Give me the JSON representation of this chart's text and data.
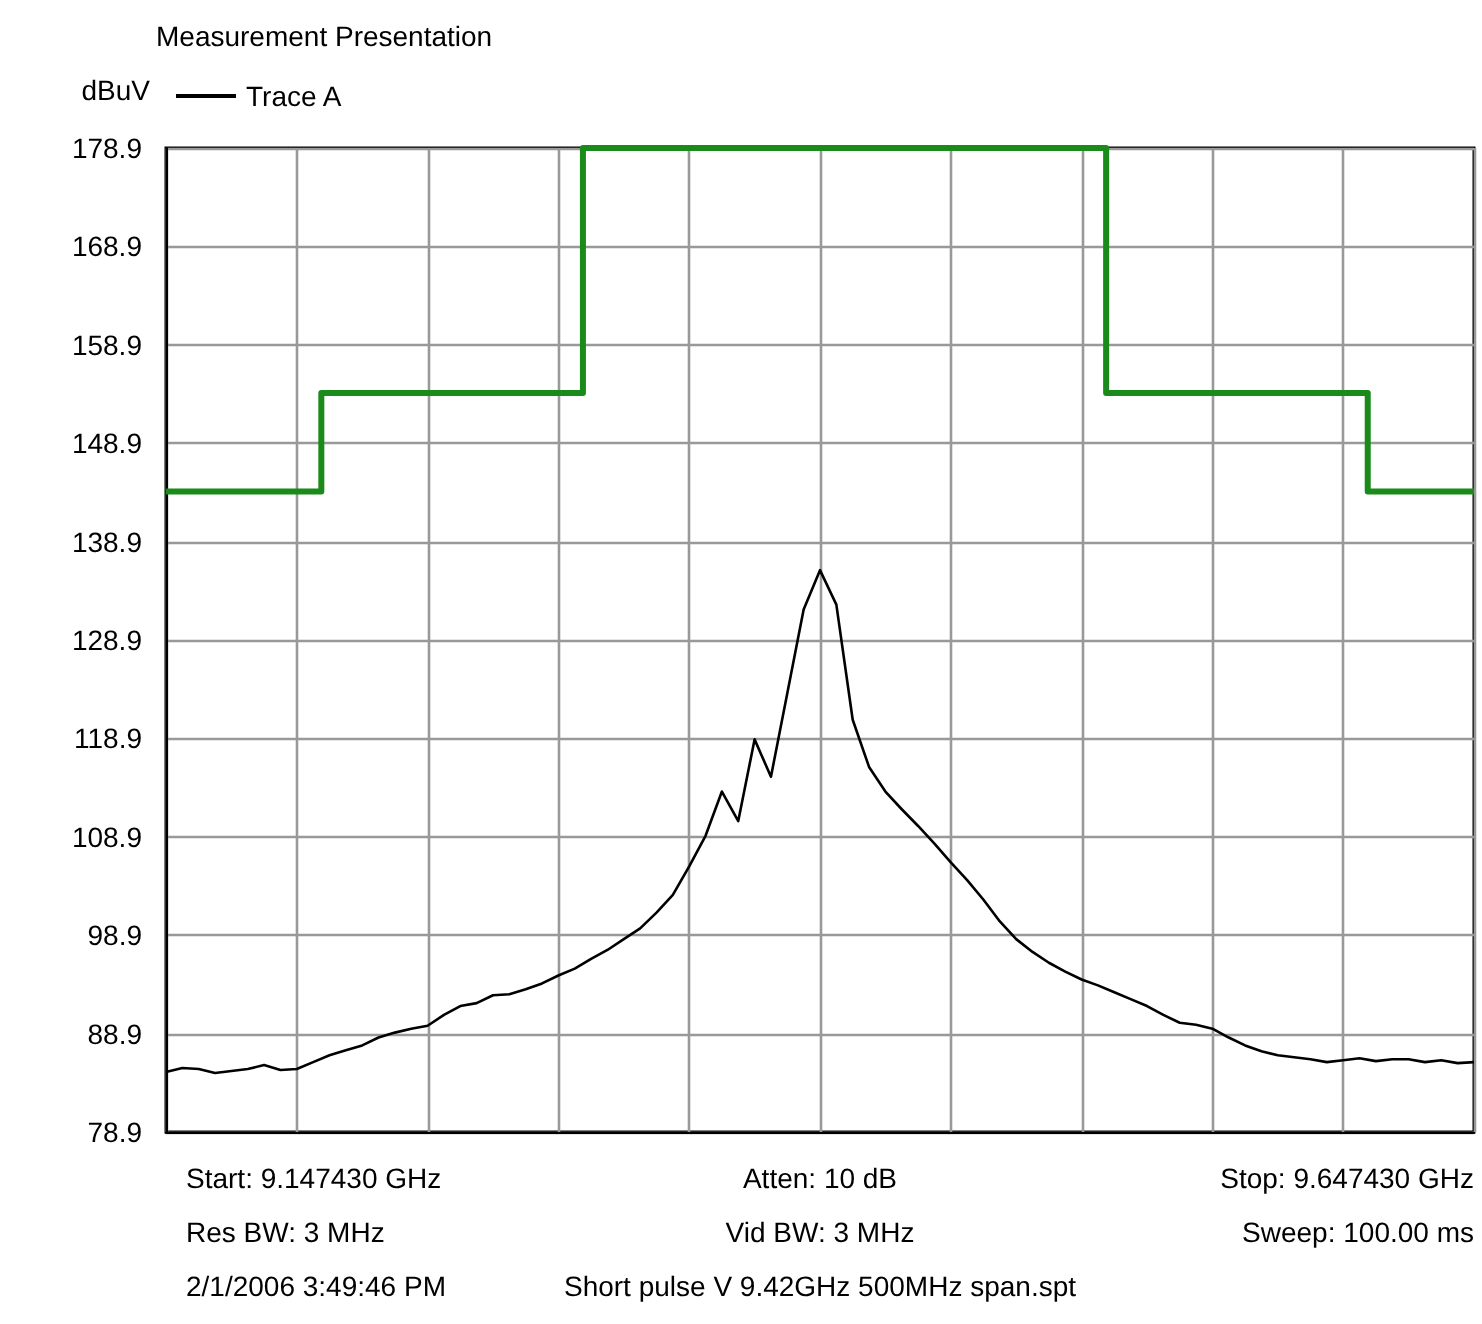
{
  "chart_data": {
    "type": "line",
    "title": "Measurement Presentation",
    "ylabel": "dBuV",
    "categories": [
      null,
      null,
      null,
      null,
      null,
      null,
      null,
      null,
      null,
      null,
      null,
      null,
      null,
      null,
      null,
      null,
      null,
      null,
      null,
      null,
      null,
      null,
      null,
      null,
      null,
      null,
      null,
      null,
      null,
      null,
      null,
      null,
      null,
      null,
      null,
      null,
      null,
      null,
      null,
      null,
      null,
      null,
      null,
      null,
      null,
      null,
      null,
      null,
      null,
      null,
      null,
      null,
      null,
      null,
      null,
      null,
      null,
      null,
      null,
      null,
      null,
      null,
      null,
      null,
      null,
      null,
      null,
      null,
      null,
      null,
      null,
      null,
      null,
      null,
      null,
      null,
      null,
      null,
      null,
      null,
      null
    ],
    "ylim": [
      78.9,
      178.9
    ],
    "yticks": [
      78.9,
      88.9,
      98.9,
      108.9,
      118.9,
      128.9,
      138.9,
      148.9,
      158.9,
      168.9,
      178.9
    ],
    "tick_labels": "y",
    "grid": true,
    "legend": "top left",
    "marker": "none",
    "series": [
      {
        "type": "step",
        "color": "#1a8a1a",
        "values": [
          144,
          144,
          144,
          144,
          144,
          144,
          144,
          144,
          144,
          144,
          154,
          154,
          154,
          154,
          154,
          154,
          154,
          154,
          154,
          154,
          154,
          154,
          154,
          154,
          154,
          154,
          178.9,
          178.9,
          178.9,
          178.9,
          178.9,
          178.9,
          178.9,
          178.9,
          178.9,
          178.9,
          178.9,
          178.9,
          178.9,
          178.9,
          178.9,
          178.9,
          178.9,
          178.9,
          178.9,
          178.9,
          178.9,
          178.9,
          178.9,
          178.9,
          178.9,
          178.9,
          178.9,
          178.9,
          178.9,
          178.9,
          178.9,
          178.9,
          154,
          154,
          154,
          154,
          154,
          154,
          154,
          154,
          154,
          154,
          154,
          154,
          154,
          154,
          154,
          154,
          144,
          144,
          144,
          144,
          144,
          144,
          144
        ]
      },
      {
        "name": "Trace A",
        "color": "#000000",
        "values": [
          85.0,
          85.4,
          85.3,
          84.9,
          85.1,
          85.3,
          85.7,
          85.2,
          85.3,
          86.0,
          86.7,
          87.2,
          87.7,
          88.5,
          89.0,
          89.4,
          89.7,
          90.8,
          91.7,
          92.0,
          92.8,
          92.9,
          93.4,
          94.0,
          94.8,
          95.5,
          96.5,
          97.4,
          98.5,
          99.6,
          101.2,
          103.0,
          105.9,
          109.0,
          113.5,
          110.5,
          118.8,
          115.0,
          123.5,
          132.0,
          136.0,
          132.5,
          120.8,
          116.0,
          113.5,
          111.7,
          110.0,
          108.2,
          106.3,
          104.5,
          102.5,
          100.3,
          98.5,
          97.2,
          96.1,
          95.2,
          94.4,
          93.8,
          93.1,
          92.4,
          91.7,
          90.8,
          90.0,
          89.8,
          89.4,
          88.5,
          87.7,
          87.1,
          86.7,
          86.5,
          86.3,
          86.0,
          86.2,
          86.4,
          86.1,
          86.3,
          86.3,
          86.0,
          86.2,
          85.9,
          86.0
        ]
      }
    ],
    "annotations": [
      "Start: 9.147430 GHz",
      "Atten: 10 dB",
      "Stop: 9.647430 GHz",
      "Res BW: 3 MHz",
      "Vid BW: 3 MHz",
      "Sweep: 100.00 ms",
      "2/1/2006 3:49:46 PM",
      "Short pulse V 9.42GHz 500MHz span.spt",
      null
    ]
  }
}
